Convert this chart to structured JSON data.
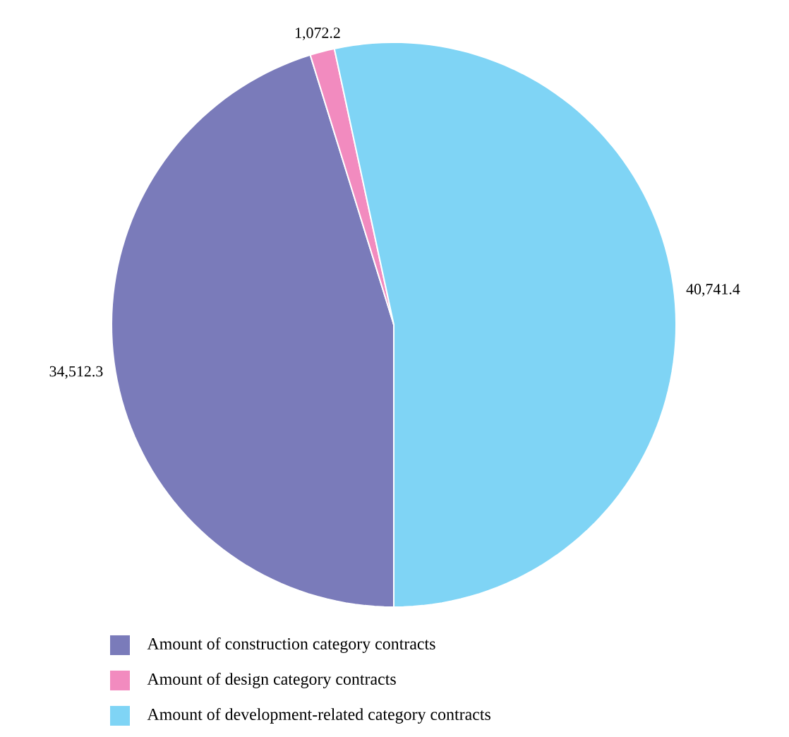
{
  "chart_data": {
    "type": "pie",
    "categories": [
      "Amount of construction category contracts",
      "Amount of design category contracts",
      "Amount of development-related category contracts"
    ],
    "values": [
      34512.3,
      1072.2,
      40741.4
    ],
    "value_labels": [
      "34,512.3",
      "1,072.2",
      "40,741.4"
    ],
    "colors": [
      "#7a7bba",
      "#f28bbf",
      "#7fd4f5"
    ],
    "legend": "bottom"
  }
}
